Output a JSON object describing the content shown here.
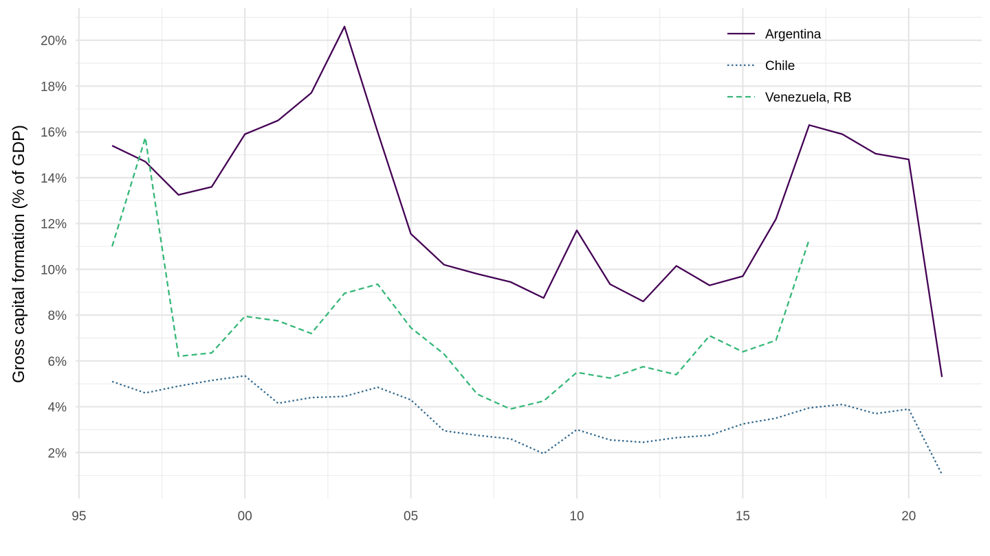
{
  "chart_data": {
    "type": "line",
    "title": "",
    "xlabel": "",
    "ylabel": "Gross capital formation (% of GDP)",
    "x_ticks": [
      "95",
      "00",
      "05",
      "10",
      "15",
      "20"
    ],
    "x_tick_values": [
      1995,
      2000,
      2005,
      2010,
      2015,
      2020
    ],
    "y_ticks": [
      "2%",
      "4%",
      "6%",
      "8%",
      "10%",
      "12%",
      "14%",
      "16%",
      "18%",
      "20%"
    ],
    "y_tick_values": [
      2,
      4,
      6,
      8,
      10,
      12,
      14,
      16,
      18,
      20
    ],
    "xlim": [
      1994.9,
      2022.2
    ],
    "ylim": [
      0.0,
      21.4
    ],
    "grid": true,
    "legend_position": "top-right",
    "series": [
      {
        "name": "Argentina",
        "color": "#440154",
        "dash": "solid",
        "x": [
          1996,
          1997,
          1998,
          1999,
          2000,
          2001,
          2002,
          2003,
          2004,
          2005,
          2006,
          2007,
          2008,
          2009,
          2010,
          2011,
          2012,
          2013,
          2014,
          2015,
          2016,
          2017,
          2018,
          2019,
          2020,
          2021
        ],
        "values": [
          15.4,
          14.7,
          13.25,
          13.6,
          15.9,
          16.5,
          17.7,
          20.6,
          16.0,
          11.55,
          10.2,
          9.8,
          9.45,
          8.75,
          11.7,
          9.35,
          8.6,
          10.15,
          9.3,
          9.7,
          12.2,
          16.3,
          15.9,
          15.05,
          14.8,
          5.3
        ]
      },
      {
        "name": "Chile",
        "color": "#31688e",
        "dash": "dotted",
        "x": [
          1996,
          1997,
          1998,
          1999,
          2000,
          2001,
          2002,
          2003,
          2004,
          2005,
          2006,
          2007,
          2008,
          2009,
          2010,
          2011,
          2012,
          2013,
          2014,
          2015,
          2016,
          2017,
          2018,
          2019,
          2020,
          2021
        ],
        "values": [
          5.1,
          4.6,
          4.9,
          5.15,
          5.35,
          4.15,
          4.4,
          4.45,
          4.85,
          4.3,
          2.95,
          2.75,
          2.6,
          1.95,
          3.0,
          2.55,
          2.45,
          2.65,
          2.75,
          3.25,
          3.5,
          3.95,
          4.1,
          3.7,
          3.9,
          1.05
        ]
      },
      {
        "name": "Venezuela, RB",
        "color": "#35b779",
        "dash": "dashed",
        "x": [
          1996,
          1997,
          1998,
          1999,
          2000,
          2001,
          2002,
          2003,
          2004,
          2005,
          2006,
          2007,
          2008,
          2009,
          2010,
          2011,
          2012,
          2013,
          2014,
          2015,
          2016,
          2017
        ],
        "values": [
          11.0,
          15.75,
          6.2,
          6.35,
          7.95,
          7.75,
          7.2,
          8.95,
          9.35,
          7.45,
          6.3,
          4.55,
          3.9,
          4.25,
          5.5,
          5.25,
          5.75,
          5.4,
          7.1,
          6.4,
          6.9,
          11.3
        ]
      }
    ]
  }
}
